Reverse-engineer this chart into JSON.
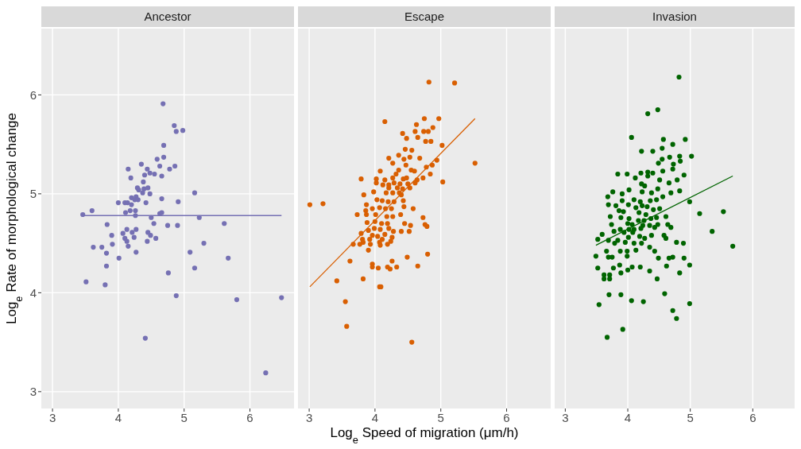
{
  "chart_data": [
    {
      "type": "scatter",
      "title": "Ancestor",
      "ylabel": "Log$_{e}$ Rate of morphological change",
      "xlim": [
        2.83,
        6.67
      ],
      "ylim": [
        2.83,
        6.67
      ],
      "xticks": [
        3,
        4,
        5,
        6
      ],
      "yticks": [
        3,
        4,
        5,
        6
      ],
      "grid": true,
      "marker": "circle",
      "series": [
        {
          "color": "#7570b3",
          "x": [
            4.68,
            4.85,
            4.88,
            4.98,
            4.69,
            4.59,
            4.69,
            4.35,
            4.63,
            4.86,
            4.15,
            4.44,
            4.78,
            4.4,
            4.48,
            4.55,
            4.66,
            4.19,
            4.38,
            4.29,
            4.31,
            4.39,
            4.45,
            4.37,
            4.48,
            5.16,
            4.0,
            4.1,
            4.14,
            4.2,
            4.27,
            4.25,
            4.3,
            4.2,
            4.42,
            4.66,
            4.91,
            3.6,
            3.46,
            4.11,
            4.18,
            4.26,
            4.26,
            4.5,
            4.63,
            4.66,
            5.23,
            3.83,
            4.54,
            4.75,
            4.9,
            5.61,
            4.13,
            4.27,
            4.07,
            4.21,
            4.45,
            3.9,
            4.1,
            4.24,
            4.49,
            4.57,
            4.13,
            3.91,
            4.44,
            5.3,
            3.62,
            3.75,
            4.15,
            3.82,
            4.27,
            5.09,
            4.01,
            5.67,
            3.82,
            5.16,
            4.76,
            3.51,
            3.8,
            4.88,
            5.8,
            6.48,
            4.41,
            6.24
          ],
          "values": [
            5.91,
            5.69,
            5.63,
            5.64,
            5.49,
            5.35,
            5.37,
            5.3,
            5.28,
            5.28,
            5.25,
            5.25,
            5.25,
            5.19,
            5.21,
            5.2,
            5.18,
            5.16,
            5.12,
            5.06,
            5.04,
            5.05,
            5.06,
            5.01,
            5.0,
            5.01,
            4.91,
            4.91,
            4.91,
            4.96,
            4.97,
            4.94,
            4.94,
            4.89,
            4.91,
            4.95,
            4.92,
            4.83,
            4.79,
            4.81,
            4.83,
            4.83,
            4.78,
            4.76,
            4.8,
            4.81,
            4.76,
            4.69,
            4.7,
            4.68,
            4.68,
            4.7,
            4.64,
            4.64,
            4.6,
            4.61,
            4.61,
            4.58,
            4.55,
            4.56,
            4.58,
            4.55,
            4.52,
            4.49,
            4.52,
            4.5,
            4.46,
            4.46,
            4.47,
            4.4,
            4.41,
            4.41,
            4.35,
            4.35,
            4.27,
            4.25,
            4.2,
            4.11,
            4.08,
            3.97,
            3.93,
            3.95,
            3.54,
            3.19
          ]
        },
        {
          "type": "line",
          "marker": "none",
          "color": "#7570b3",
          "x": [
            3.46,
            6.48
          ],
          "values": [
            4.78,
            4.78
          ]
        }
      ]
    },
    {
      "type": "scatter",
      "title": "Escape",
      "xlabel": "Log$_{e}$ Speed of migration (μm/h)",
      "xlim": [
        2.83,
        6.67
      ],
      "ylim": [
        2.83,
        6.67
      ],
      "xticks": [
        3,
        4,
        5,
        6
      ],
      "yticks": [
        3,
        4,
        5,
        6
      ],
      "grid": true,
      "marker": "circle",
      "tick_labels": "x",
      "series": [
        {
          "color": "#d95f02",
          "x": [
            4.82,
            5.21,
            4.15,
            4.75,
            4.97,
            4.63,
            4.88,
            4.42,
            4.61,
            4.74,
            4.81,
            4.48,
            4.65,
            4.77,
            4.85,
            5.02,
            4.46,
            4.56,
            4.36,
            4.21,
            4.44,
            4.53,
            4.68,
            4.94,
            4.27,
            4.47,
            4.78,
            4.87,
            5.52,
            4.08,
            4.36,
            4.55,
            4.6,
            4.32,
            4.84,
            3.79,
            4.02,
            4.15,
            4.27,
            4.43,
            4.48,
            4.64,
            4.73,
            5.03,
            4.02,
            4.12,
            4.21,
            4.29,
            4.38,
            4.5,
            4.61,
            4.21,
            4.34,
            4.42,
            4.53,
            3.98,
            4.17,
            4.27,
            4.37,
            3.83,
            4.4,
            4.43,
            3.01,
            3.21,
            3.87,
            4.03,
            4.11,
            4.2,
            4.29,
            3.86,
            3.96,
            4.07,
            4.16,
            4.25,
            4.44,
            4.58,
            3.73,
            3.87,
            4.01,
            4.18,
            4.27,
            4.39,
            4.73,
            3.88,
            4.0,
            4.1,
            4.19,
            4.45,
            4.54,
            4.76,
            4.79,
            3.79,
            3.9,
            3.99,
            4.08,
            4.21,
            4.28,
            4.4,
            4.52,
            3.96,
            4.04,
            4.15,
            4.26,
            3.81,
            3.92,
            4.11,
            3.67,
            3.77,
            3.82,
            3.93,
            4.07,
            4.19,
            4.24,
            3.9,
            4.08,
            3.62,
            4.26,
            4.49,
            4.8,
            3.96,
            3.96,
            4.05,
            4.19,
            4.23,
            4.33,
            4.65,
            3.42,
            3.82,
            4.07,
            4.09,
            3.55,
            3.57,
            4.56
          ],
          "values": [
            6.13,
            6.12,
            5.73,
            5.76,
            5.76,
            5.7,
            5.67,
            5.61,
            5.63,
            5.63,
            5.63,
            5.56,
            5.57,
            5.53,
            5.53,
            5.49,
            5.45,
            5.44,
            5.39,
            5.36,
            5.35,
            5.37,
            5.36,
            5.34,
            5.31,
            5.29,
            5.27,
            5.29,
            5.31,
            5.23,
            5.24,
            5.24,
            5.23,
            5.2,
            5.2,
            5.15,
            5.15,
            5.14,
            5.16,
            5.15,
            5.16,
            5.14,
            5.16,
            5.12,
            5.11,
            5.09,
            5.09,
            5.11,
            5.1,
            5.1,
            5.11,
            5.06,
            5.06,
            5.05,
            5.06,
            5.02,
            5.01,
            5.01,
            5.01,
            4.99,
            4.99,
            4.93,
            4.89,
            4.9,
            4.89,
            4.94,
            4.93,
            4.92,
            4.92,
            4.83,
            4.85,
            4.86,
            4.85,
            4.85,
            4.87,
            4.85,
            4.79,
            4.79,
            4.79,
            4.77,
            4.77,
            4.79,
            4.76,
            4.71,
            4.72,
            4.7,
            4.7,
            4.7,
            4.68,
            4.69,
            4.67,
            4.6,
            4.63,
            4.65,
            4.64,
            4.65,
            4.62,
            4.62,
            4.62,
            4.58,
            4.57,
            4.59,
            4.56,
            4.54,
            4.54,
            4.54,
            4.49,
            4.49,
            4.51,
            4.49,
            4.51,
            4.49,
            4.52,
            4.43,
            4.48,
            4.32,
            4.32,
            4.36,
            4.39,
            4.29,
            4.26,
            4.25,
            4.26,
            4.24,
            4.26,
            4.27,
            4.12,
            4.14,
            4.06,
            4.06,
            3.91,
            3.66,
            3.5
          ]
        },
        {
          "type": "line",
          "marker": "none",
          "color": "#d95f02",
          "x": [
            3.01,
            5.52
          ],
          "values": [
            4.06,
            5.76
          ]
        }
      ]
    },
    {
      "type": "scatter",
      "title": "Invasion",
      "xlim": [
        2.83,
        6.67
      ],
      "ylim": [
        2.83,
        6.67
      ],
      "xticks": [
        3,
        4,
        5,
        6
      ],
      "yticks": [
        3,
        4,
        5,
        6
      ],
      "grid": true,
      "marker": "circle",
      "tick_labels": "x",
      "series": [
        {
          "color": "#006400",
          "x": [
            4.82,
            4.32,
            4.48,
            4.06,
            4.57,
            4.92,
            4.22,
            4.4,
            4.55,
            4.72,
            5.02,
            4.67,
            4.83,
            4.55,
            4.49,
            4.73,
            4.84,
            3.84,
            3.99,
            4.21,
            4.32,
            4.4,
            4.56,
            4.72,
            4.9,
            4.12,
            4.32,
            4.51,
            4.79,
            4.66,
            4.22,
            4.27,
            4.48,
            4.83,
            3.76,
            3.91,
            4.02,
            4.23,
            4.38,
            4.56,
            4.69,
            3.68,
            3.91,
            4.1,
            4.2,
            4.36,
            4.46,
            4.99,
            3.69,
            3.81,
            4.01,
            4.13,
            4.23,
            4.31,
            4.41,
            4.51,
            3.86,
            3.93,
            4.18,
            4.29,
            4.46,
            4.61,
            5.15,
            5.53,
            3.72,
            3.89,
            4.02,
            4.17,
            4.26,
            4.37,
            3.74,
            4.0,
            4.07,
            4.24,
            4.35,
            4.48,
            4.64,
            3.88,
            4.02,
            4.1,
            4.21,
            4.43,
            4.69,
            3.59,
            3.78,
            3.94,
            4.08,
            4.19,
            4.38,
            4.58,
            5.35,
            3.52,
            3.69,
            3.84,
            4.01,
            4.27,
            4.61,
            3.79,
            3.96,
            4.1,
            4.22,
            4.78,
            4.89,
            3.88,
            3.66,
            3.99,
            4.13,
            4.35,
            4.43,
            5.68,
            3.49,
            3.69,
            3.75,
            3.99,
            4.49,
            4.66,
            4.72,
            4.9,
            3.52,
            3.77,
            3.87,
            4.0,
            4.07,
            4.2,
            4.35,
            4.62,
            4.99,
            3.62,
            3.71,
            3.62,
            3.71,
            3.89,
            4.47,
            4.83,
            3.7,
            3.89,
            4.06,
            4.25,
            4.59,
            4.99,
            3.54,
            4.72,
            4.78,
            3.92,
            3.67
          ],
          "values": [
            6.18,
            5.81,
            5.85,
            5.57,
            5.55,
            5.55,
            5.43,
            5.43,
            5.46,
            5.5,
            5.38,
            5.37,
            5.38,
            5.35,
            5.31,
            5.3,
            5.33,
            5.2,
            5.2,
            5.21,
            5.22,
            5.21,
            5.23,
            5.25,
            5.19,
            5.16,
            5.18,
            5.14,
            5.14,
            5.11,
            5.1,
            5.08,
            5.05,
            5.03,
            5.02,
            5.0,
            5.04,
            5.02,
            5.01,
            4.97,
            5.01,
            4.97,
            4.93,
            4.94,
            4.92,
            4.93,
            4.94,
            4.92,
            4.89,
            4.88,
            4.89,
            4.86,
            4.88,
            4.87,
            4.84,
            4.85,
            4.83,
            4.82,
            4.81,
            4.79,
            4.76,
            4.77,
            4.8,
            4.82,
            4.77,
            4.76,
            4.75,
            4.73,
            4.73,
            4.75,
            4.69,
            4.7,
            4.69,
            4.68,
            4.68,
            4.69,
            4.69,
            4.64,
            4.64,
            4.64,
            4.65,
            4.66,
            4.66,
            4.59,
            4.62,
            4.61,
            4.61,
            4.57,
            4.58,
            4.58,
            4.62,
            4.54,
            4.53,
            4.53,
            4.56,
            4.55,
            4.55,
            4.5,
            4.51,
            4.5,
            4.5,
            4.51,
            4.5,
            4.42,
            4.42,
            4.42,
            4.43,
            4.46,
            4.42,
            4.47,
            4.37,
            4.36,
            4.36,
            4.37,
            4.35,
            4.35,
            4.36,
            4.35,
            4.25,
            4.25,
            4.28,
            4.23,
            4.26,
            4.26,
            4.22,
            4.27,
            4.28,
            4.18,
            4.18,
            4.14,
            4.14,
            4.2,
            4.14,
            4.2,
            3.98,
            3.98,
            3.92,
            3.91,
            3.99,
            3.89,
            3.88,
            3.82,
            3.74,
            3.63,
            3.55
          ]
        },
        {
          "type": "line",
          "marker": "none",
          "color": "#006400",
          "x": [
            3.49,
            5.68
          ],
          "values": [
            4.48,
            5.18
          ]
        }
      ]
    }
  ]
}
